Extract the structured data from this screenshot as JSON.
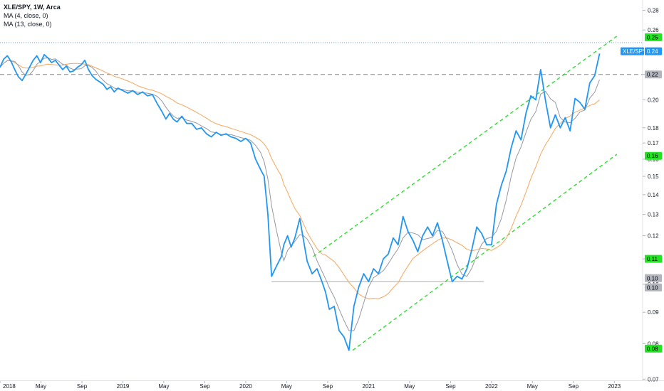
{
  "legend": {
    "symbol": "XLE/SPY, 1W, Arca",
    "ma1": "MA (4, close, 0)",
    "ma2": "MA (13, close, 0)"
  },
  "colors": {
    "price": "#2196f3",
    "ma4": "#9598a1",
    "ma13": "#f5a55c",
    "channel": "#22dd22",
    "dashed_level": "#888888",
    "support": "#bbbbbb",
    "green_badge": "#22e422",
    "gray_badge": "#b2b5be",
    "symbol_badge": "#2196f3"
  },
  "chart_data": {
    "type": "line",
    "title": "XLE/SPY, 1W, Arca",
    "x_labels": [
      "2018",
      "May",
      "Sep",
      "2019",
      "May",
      "Sep",
      "2020",
      "May",
      "Sep",
      "2021",
      "May",
      "Sep",
      "2022",
      "May",
      "Sep",
      "2023"
    ],
    "x_label_dates": [
      2018.0,
      2018.333,
      2018.667,
      2019.0,
      2019.333,
      2019.667,
      2020.0,
      2020.333,
      2020.667,
      2021.0,
      2021.333,
      2021.667,
      2022.0,
      2022.333,
      2022.667,
      2023.0
    ],
    "y_scale": "log",
    "y_ticks": [
      0.28,
      0.26,
      0.24,
      0.22,
      0.2,
      0.18,
      0.17,
      0.16,
      0.15,
      0.14,
      0.13,
      0.12,
      0.11,
      0.1,
      0.09,
      0.08,
      0.07
    ],
    "x_range": [
      2018.0,
      2023.23
    ],
    "y_range": [
      0.0695,
      0.291
    ],
    "grid": false,
    "series": [
      {
        "name": "XLE/SPY",
        "points": [
          [
            2018.0,
            0.226
          ],
          [
            2018.03,
            0.233
          ],
          [
            2018.06,
            0.236
          ],
          [
            2018.09,
            0.231
          ],
          [
            2018.12,
            0.224
          ],
          [
            2018.15,
            0.218
          ],
          [
            2018.18,
            0.215
          ],
          [
            2018.21,
            0.22
          ],
          [
            2018.24,
            0.226
          ],
          [
            2018.27,
            0.232
          ],
          [
            2018.3,
            0.236
          ],
          [
            2018.33,
            0.23
          ],
          [
            2018.36,
            0.237
          ],
          [
            2018.39,
            0.234
          ],
          [
            2018.42,
            0.23
          ],
          [
            2018.45,
            0.232
          ],
          [
            2018.48,
            0.228
          ],
          [
            2018.51,
            0.224
          ],
          [
            2018.54,
            0.227
          ],
          [
            2018.57,
            0.222
          ],
          [
            2018.6,
            0.223
          ],
          [
            2018.63,
            0.226
          ],
          [
            2018.66,
            0.228
          ],
          [
            2018.69,
            0.232
          ],
          [
            2018.72,
            0.224
          ],
          [
            2018.75,
            0.219
          ],
          [
            2018.78,
            0.216
          ],
          [
            2018.81,
            0.214
          ],
          [
            2018.84,
            0.212
          ],
          [
            2018.87,
            0.208
          ],
          [
            2018.9,
            0.21
          ],
          [
            2018.93,
            0.206
          ],
          [
            2018.96,
            0.209
          ],
          [
            2019.0,
            0.207
          ],
          [
            2019.04,
            0.205
          ],
          [
            2019.08,
            0.207
          ],
          [
            2019.12,
            0.204
          ],
          [
            2019.16,
            0.206
          ],
          [
            2019.2,
            0.203
          ],
          [
            2019.24,
            0.204
          ],
          [
            2019.28,
            0.197
          ],
          [
            2019.32,
            0.191
          ],
          [
            2019.35,
            0.186
          ],
          [
            2019.38,
            0.19
          ],
          [
            2019.41,
            0.186
          ],
          [
            2019.44,
            0.184
          ],
          [
            2019.48,
            0.188
          ],
          [
            2019.52,
            0.183
          ],
          [
            2019.56,
            0.183
          ],
          [
            2019.6,
            0.179
          ],
          [
            2019.64,
            0.18
          ],
          [
            2019.68,
            0.176
          ],
          [
            2019.72,
            0.174
          ],
          [
            2019.76,
            0.177
          ],
          [
            2019.8,
            0.175
          ],
          [
            2019.84,
            0.176
          ],
          [
            2019.88,
            0.174
          ],
          [
            2019.92,
            0.173
          ],
          [
            2019.96,
            0.171
          ],
          [
            2020.0,
            0.173
          ],
          [
            2020.04,
            0.17
          ],
          [
            2020.08,
            0.16
          ],
          [
            2020.12,
            0.154
          ],
          [
            2020.15,
            0.15
          ],
          [
            2020.18,
            0.13
          ],
          [
            2020.21,
            0.103
          ],
          [
            2020.25,
            0.107
          ],
          [
            2020.29,
            0.111
          ],
          [
            2020.31,
            0.116
          ],
          [
            2020.34,
            0.12
          ],
          [
            2020.37,
            0.115
          ],
          [
            2020.4,
            0.119
          ],
          [
            2020.44,
            0.128
          ],
          [
            2020.47,
            0.118
          ],
          [
            2020.5,
            0.109
          ],
          [
            2020.54,
            0.104
          ],
          [
            2020.58,
            0.106
          ],
          [
            2020.62,
            0.101
          ],
          [
            2020.65,
            0.097
          ],
          [
            2020.68,
            0.091
          ],
          [
            2020.72,
            0.092
          ],
          [
            2020.76,
            0.084
          ],
          [
            2020.8,
            0.082
          ],
          [
            2020.84,
            0.078
          ],
          [
            2020.88,
            0.092
          ],
          [
            2020.92,
            0.099
          ],
          [
            2020.96,
            0.104
          ],
          [
            2021.0,
            0.101
          ],
          [
            2021.04,
            0.106
          ],
          [
            2021.08,
            0.104
          ],
          [
            2021.12,
            0.11
          ],
          [
            2021.16,
            0.112
          ],
          [
            2021.2,
            0.119
          ],
          [
            2021.24,
            0.116
          ],
          [
            2021.28,
            0.129
          ],
          [
            2021.32,
            0.122
          ],
          [
            2021.36,
            0.118
          ],
          [
            2021.4,
            0.113
          ],
          [
            2021.44,
            0.12
          ],
          [
            2021.48,
            0.124
          ],
          [
            2021.52,
            0.12
          ],
          [
            2021.56,
            0.126
          ],
          [
            2021.6,
            0.118
          ],
          [
            2021.64,
            0.109
          ],
          [
            2021.68,
            0.101
          ],
          [
            2021.72,
            0.103
          ],
          [
            2021.76,
            0.102
          ],
          [
            2021.8,
            0.106
          ],
          [
            2021.84,
            0.114
          ],
          [
            2021.88,
            0.124
          ],
          [
            2021.92,
            0.121
          ],
          [
            2021.96,
            0.116
          ],
          [
            2022.0,
            0.116
          ],
          [
            2022.04,
            0.135
          ],
          [
            2022.08,
            0.145
          ],
          [
            2022.12,
            0.153
          ],
          [
            2022.16,
            0.167
          ],
          [
            2022.2,
            0.178
          ],
          [
            2022.24,
            0.172
          ],
          [
            2022.28,
            0.19
          ],
          [
            2022.32,
            0.203
          ],
          [
            2022.36,
            0.2
          ],
          [
            2022.4,
            0.224
          ],
          [
            2022.44,
            0.199
          ],
          [
            2022.48,
            0.18
          ],
          [
            2022.52,
            0.189
          ],
          [
            2022.56,
            0.18
          ],
          [
            2022.6,
            0.187
          ],
          [
            2022.64,
            0.178
          ],
          [
            2022.68,
            0.201
          ],
          [
            2022.72,
            0.198
          ],
          [
            2022.76,
            0.193
          ],
          [
            2022.8,
            0.213
          ],
          [
            2022.84,
            0.219
          ],
          [
            2022.88,
            0.238
          ]
        ]
      },
      {
        "name": "MA (4, close, 0)"
      },
      {
        "name": "MA (13, close, 0)"
      }
    ],
    "levels": [
      {
        "kind": "dotted",
        "value": 0.248
      },
      {
        "kind": "dashed",
        "value": 0.22
      },
      {
        "kind": "support",
        "value": 0.101,
        "from": 2020.21,
        "to": 2021.88
      }
    ],
    "channel": [
      {
        "from": [
          2020.55,
          0.111
        ],
        "to": [
          2023.02,
          0.254
        ]
      },
      {
        "from": [
          2020.87,
          0.078
        ],
        "to": [
          2023.02,
          0.163
        ]
      }
    ],
    "price_badges": [
      {
        "text": "0.25",
        "value": 0.253,
        "style": "green"
      },
      {
        "text": "XLE/SPY",
        "value": 0.24,
        "style": "symbol"
      },
      {
        "text": "0.24",
        "value": 0.24,
        "style": "symbol"
      },
      {
        "text": "0.22",
        "value": 0.22,
        "style": "gray"
      },
      {
        "text": "0.16",
        "value": 0.162,
        "style": "green"
      },
      {
        "text": "0.11",
        "value": 0.11,
        "style": "green"
      },
      {
        "text": "0.10",
        "value": 0.1023,
        "style": "gray"
      },
      {
        "text": "0.10",
        "value": 0.0988,
        "style": "gray"
      },
      {
        "text": "0.08",
        "value": 0.0785,
        "style": "green"
      }
    ]
  }
}
